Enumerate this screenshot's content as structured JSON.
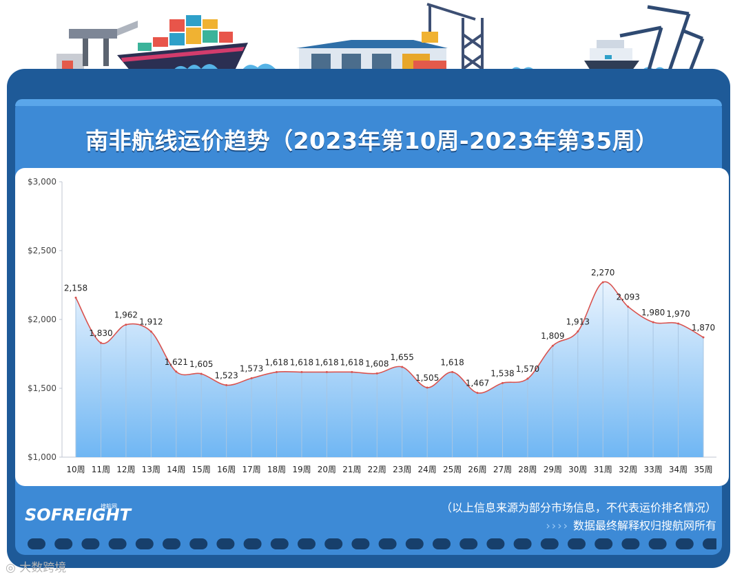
{
  "title": "南非航线运价趋势（2023年第10周-2023年第35周）",
  "footer": {
    "logo_text": "SOFREIGHT",
    "logo_sub": "搜航网",
    "note1": "（以上信息来源为部分市场信息，不代表运价排名情况）",
    "note2_prefix": "››››",
    "note2": "数据最终解释权归搜航网所有",
    "watermark": "大数跨境"
  },
  "colors": {
    "board": "#1e5a98",
    "board_inner": "#3d8ad6",
    "line": "#d9534f",
    "area_top": "#e6f2fd",
    "area_bottom": "#6cb4f2"
  },
  "chart_data": {
    "type": "area",
    "title": "南非航线运价趋势（2023年第10周-2023年第35周）",
    "categories": [
      "10周",
      "11周",
      "12周",
      "13周",
      "14周",
      "15周",
      "16周",
      "17周",
      "18周",
      "19周",
      "20周",
      "21周",
      "22周",
      "23周",
      "24周",
      "25周",
      "26周",
      "27周",
      "28周",
      "29周",
      "30周",
      "31周",
      "32周",
      "33周",
      "34周",
      "35周"
    ],
    "values": [
      2158,
      1830,
      1962,
      1912,
      1621,
      1605,
      1523,
      1573,
      1618,
      1618,
      1618,
      1618,
      1608,
      1655,
      1505,
      1618,
      1467,
      1538,
      1570,
      1809,
      1913,
      2270,
      2093,
      1980,
      1970,
      1870
    ],
    "value_labels": [
      "2,158",
      "1,830",
      "1,962",
      "1,912",
      "1,621",
      "1,605",
      "1,523",
      "1,573",
      "1,618",
      "1,618",
      "1,618",
      "1,618",
      "1,608",
      "1,655",
      "1,505",
      "1,618",
      "1,467",
      "1,538",
      "1,570",
      "1,809",
      "1,913",
      "2,270",
      "2,093",
      "1,980",
      "1,970",
      "1,870"
    ],
    "ylim": [
      1000,
      3000
    ],
    "yticks": [
      1000,
      1500,
      2000,
      2500,
      3000
    ],
    "ytick_labels": [
      "$1,000",
      "$1,500",
      "$2,000",
      "$2,500",
      "$3,000"
    ],
    "xlabel": "",
    "ylabel": "",
    "grid": "vertical",
    "legend": "none"
  }
}
